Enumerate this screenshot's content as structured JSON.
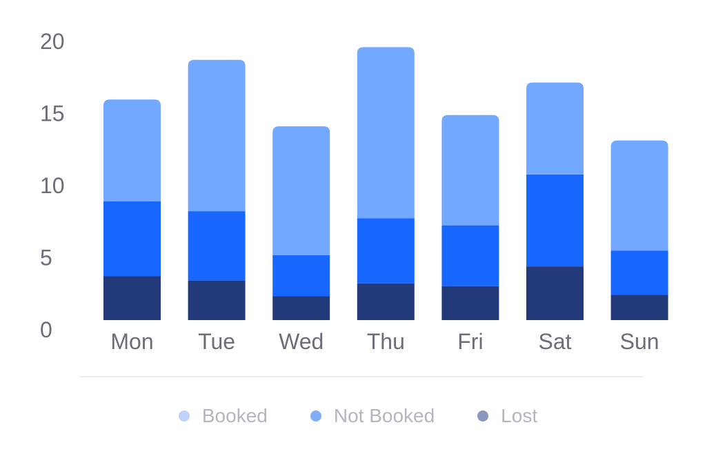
{
  "chart_data": {
    "type": "bar",
    "stacked": true,
    "categories": [
      "Mon",
      "Tue",
      "Wed",
      "Thu",
      "Fri",
      "Sat",
      "Sun"
    ],
    "series": [
      {
        "name": "Lost",
        "color": "#233a7a",
        "values": [
          3.1,
          2.8,
          1.7,
          2.6,
          2.4,
          3.8,
          1.8
        ]
      },
      {
        "name": "Not Booked",
        "color": "#1766ff",
        "values": [
          5.3,
          4.9,
          2.9,
          4.6,
          4.3,
          6.5,
          3.1
        ]
      },
      {
        "name": "Booked",
        "color": "#72a8ff",
        "values": [
          7.2,
          10.7,
          9.1,
          12.1,
          7.8,
          6.5,
          7.8
        ]
      }
    ],
    "legend": [
      {
        "name": "Booked",
        "dot_color": "#bcd4fb"
      },
      {
        "name": "Not Booked",
        "dot_color": "#80adf8"
      },
      {
        "name": "Lost",
        "dot_color": "#8d96bc"
      }
    ],
    "legend_position": "bottom",
    "y_ticks": [
      "0",
      "5",
      "10",
      "15",
      "20"
    ],
    "ylim": [
      0,
      20
    ],
    "grid": false,
    "title": "",
    "xlabel": "",
    "ylabel": ""
  }
}
